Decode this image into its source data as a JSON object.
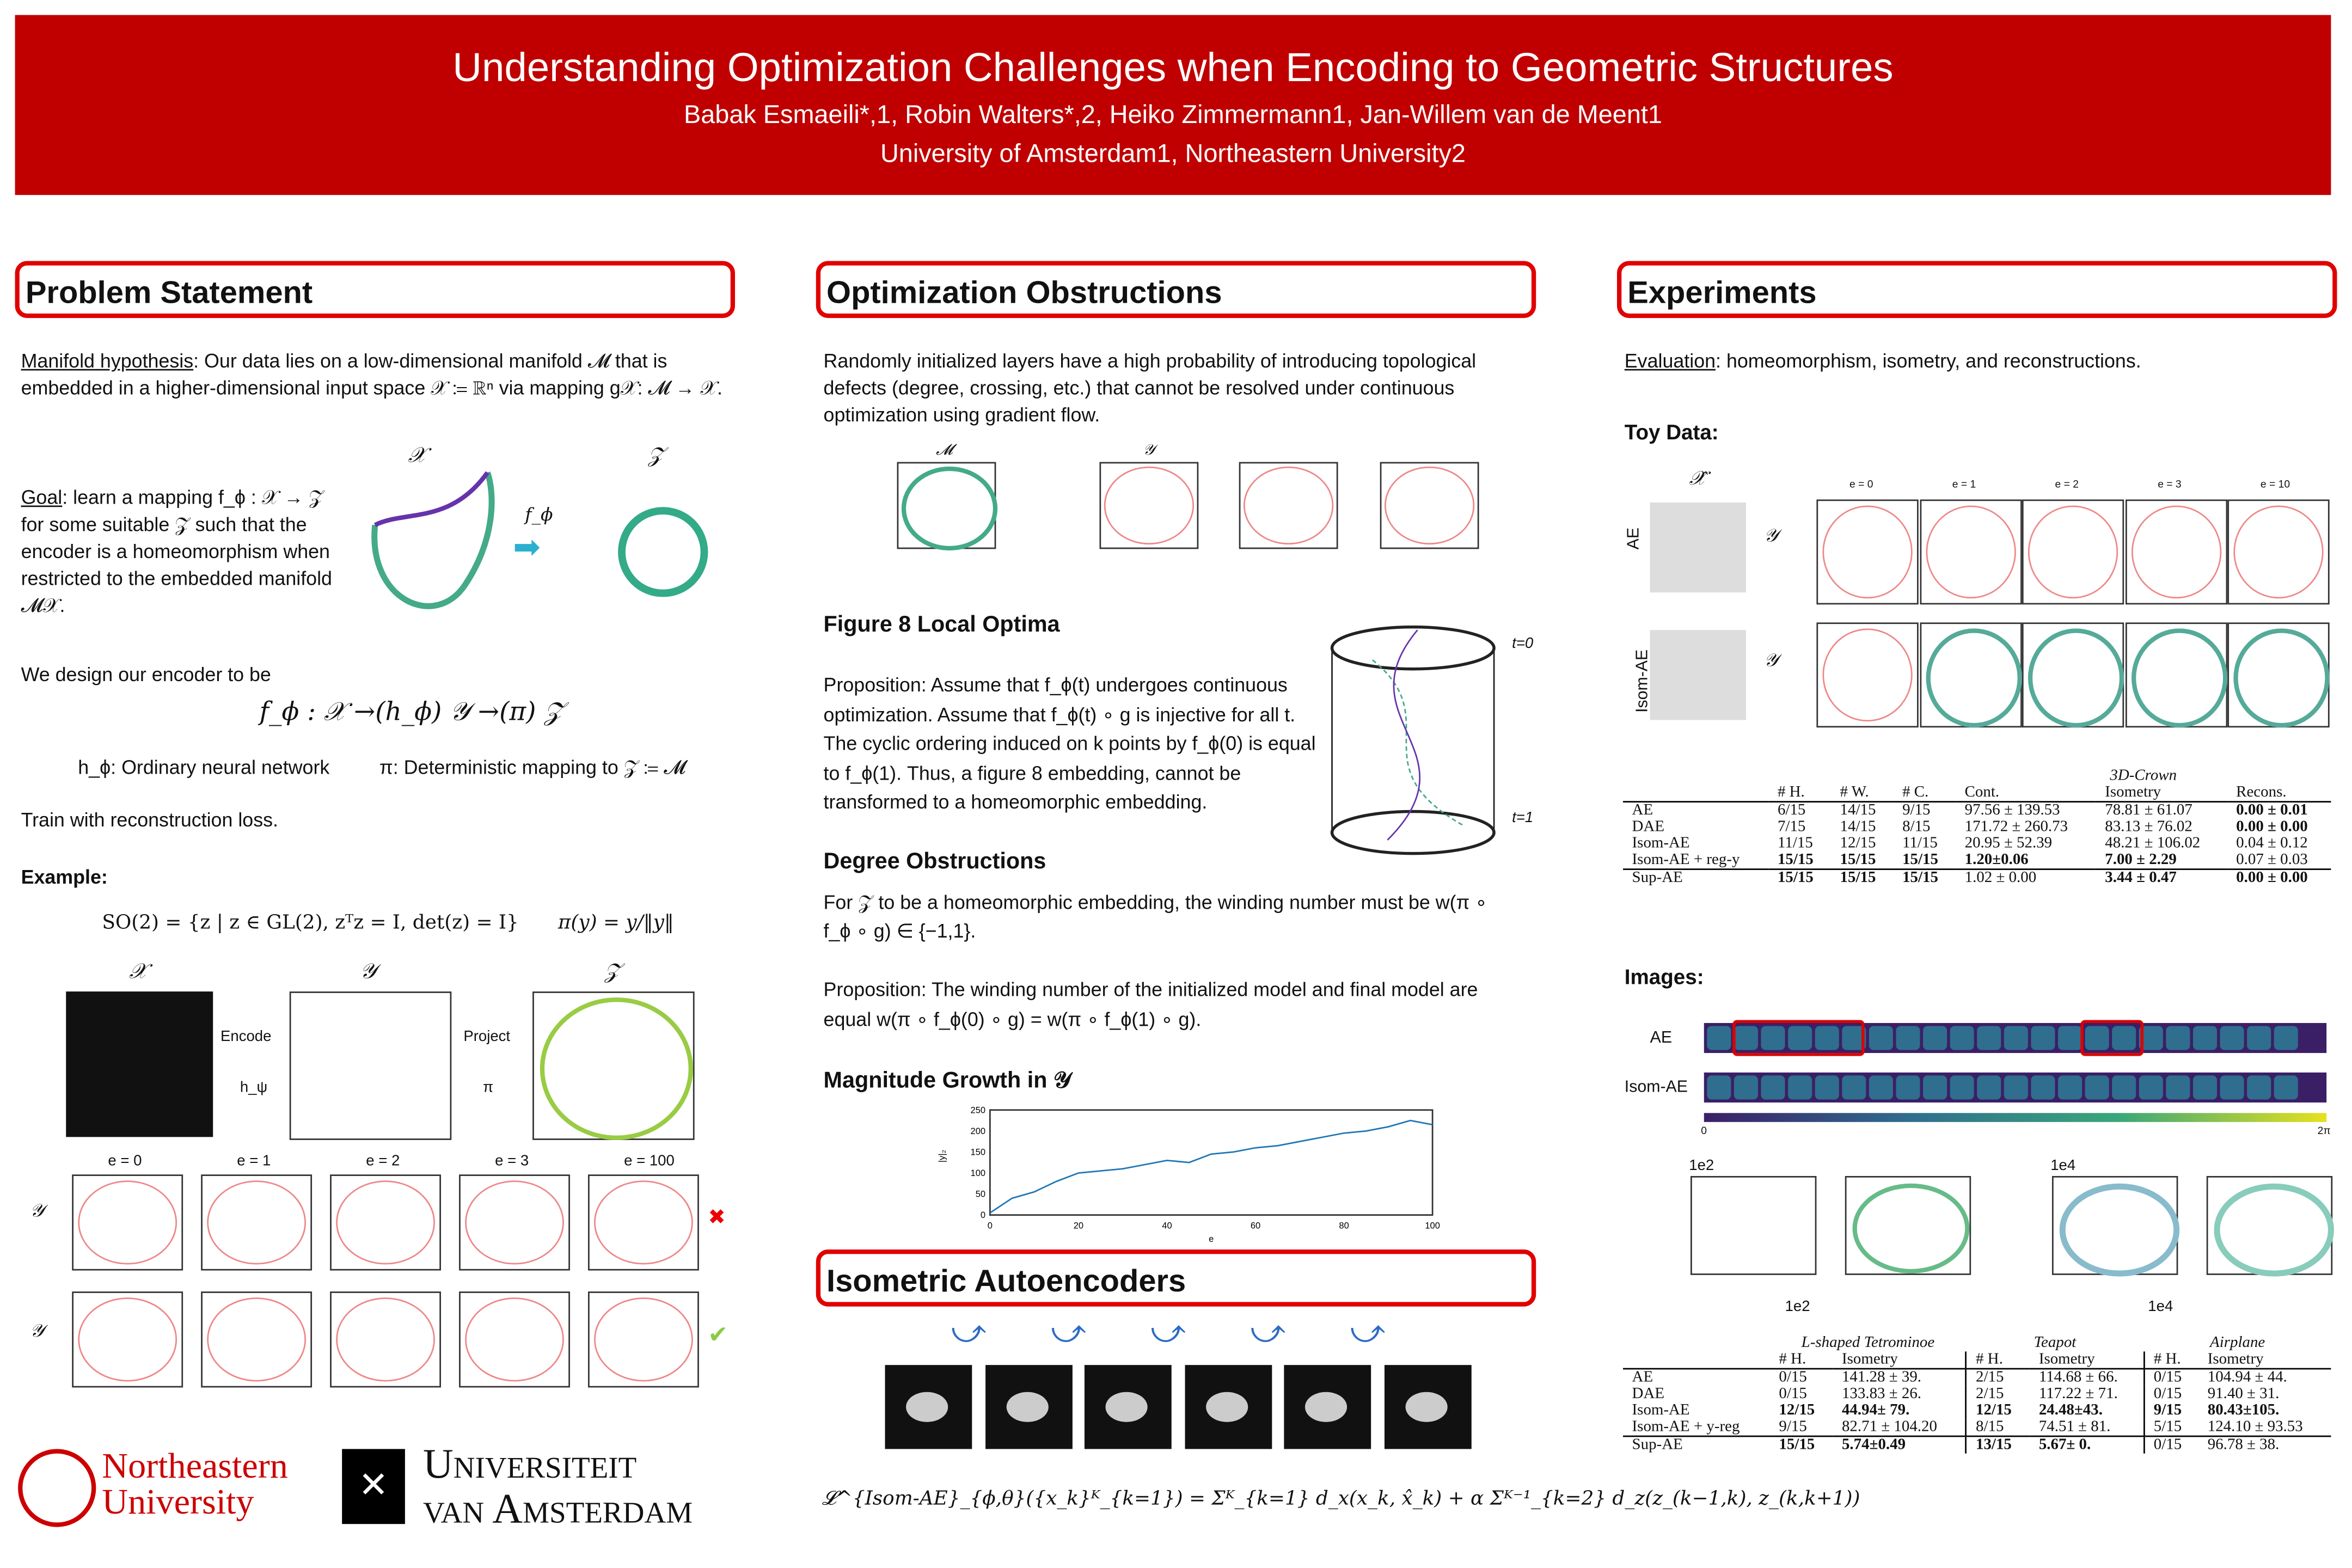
{
  "header": {
    "title": "Understanding Optimization Challenges when Encoding to Geometric Structures",
    "authors": "Babak Esmaeili*,1, Robin Walters*,2, Heiko Zimmermann1, Jan-Willem van de Meent1",
    "affiliations": "University of Amsterdam1, Northeastern University2"
  },
  "problem": {
    "title": "Problem Statement",
    "manifold_label": "Manifold hypothesis",
    "manifold_text": ": Our data lies on a low-dimensional manifold 𝓜 that is embedded in a higher-dimensional input space 𝒳 ≔ ℝⁿ via mapping g𝒳: 𝓜 → 𝒳.",
    "goal_label": "Goal",
    "goal_text": ": learn a mapping f_ϕ : 𝒳 → 𝒵 for some suitable 𝒵 such that the encoder is a homeomorphism when restricted to the embedded manifold 𝓜𝒳.",
    "fig_x": "𝒳",
    "fig_z": "𝒵",
    "fig_f": "f_ϕ",
    "design": "We design our encoder to be",
    "design_eq": "f_ϕ : 𝒳 →(h_ϕ) 𝒴 →(π) 𝒵",
    "h_text": "h_ϕ: Ordinary neural network",
    "pi_text": "π: Deterministic mapping to 𝒵 ≔ 𝓜",
    "train": "Train with reconstruction loss.",
    "example": "Example:",
    "so2": "SO(2) = {z | z ∈ GL(2), zᵀz = I, det(z) = I}",
    "pi_eq": "π(y) = y/‖y‖",
    "ex_x": "𝒳",
    "ex_y": "𝒴",
    "ex_z": "𝒵",
    "encode": "Encode",
    "h_psi": "h_ψ",
    "project": "Project",
    "pi": "π",
    "epochs": [
      "e = 0",
      "e = 1",
      "e = 2",
      "e = 3",
      "e = 100"
    ],
    "row_label": "𝒴",
    "fail": "✖",
    "ok": "✔"
  },
  "logos": {
    "northeastern": "Northeastern University",
    "uva1": "Universiteit",
    "uva2": "van Amsterdam"
  },
  "obstructions": {
    "title": "Optimization Obstructions",
    "intro": "Randomly initialized layers have a high probability of introducing topological defects (degree, crossing, etc.) that cannot be resolved under continuous optimization using gradient flow.",
    "plot_m": "𝓜",
    "plot_y": "𝒴",
    "fig8_title": "Figure 8 Local Optima",
    "fig8_text": "Proposition: Assume that f_ϕ(t) undergoes continuous optimization. Assume that f_ϕ(t) ∘ g is injective for all t. The cyclic ordering induced on k points by f_ϕ(0) is equal to f_ϕ(1). Thus, a figure 8 embedding, cannot be transformed to a homeomorphic embedding.",
    "t0": "t=0",
    "t1": "t=1",
    "deg_title": "Degree Obstructions",
    "deg_text": "For 𝒵 to be a homeomorphic embedding, the winding number must be w(π ∘ f_ϕ ∘ g) ∈ {−1,1}.",
    "deg_prop": "Proposition: The winding number of the initialized model and final model are equal w(π ∘ f_ϕ(0) ∘ g) = w(π ∘ f_ϕ(1) ∘ g).",
    "mag_title": "Magnitude Growth in 𝒴",
    "mag_xlabel": "e",
    "mag_ylabel": "|y|₂"
  },
  "chart_data": {
    "type": "line",
    "title": "Magnitude Growth in 𝒴",
    "xlabel": "e",
    "ylabel": "|y|₂",
    "xlim": [
      0,
      100
    ],
    "ylim": [
      0,
      250
    ],
    "xticks": [
      0,
      20,
      40,
      60,
      80,
      100
    ],
    "yticks": [
      0,
      50,
      100,
      150,
      200,
      250
    ],
    "x": [
      0,
      5,
      10,
      15,
      20,
      25,
      30,
      35,
      40,
      45,
      50,
      55,
      60,
      65,
      70,
      75,
      80,
      85,
      90,
      95,
      100
    ],
    "y": [
      5,
      40,
      55,
      80,
      100,
      105,
      110,
      120,
      130,
      125,
      145,
      150,
      160,
      165,
      175,
      185,
      195,
      200,
      210,
      225,
      215
    ]
  },
  "isometric": {
    "title": "Isometric Autoencoders",
    "loss": "𝓛^{Isom-AE}_{ϕ,θ}({x_k}ᴷ_{k=1}) = Σᴷ_{k=1} d_x(x_k, x̂_k) + α Σᴷ⁻¹_{k=2} d_z(z_(k−1,k), z_(k,k+1))"
  },
  "experiments": {
    "title": "Experiments",
    "eval_label": "Evaluation",
    "eval_text": ": homeomorphism, isometry, and reconstructions.",
    "toy": "Toy Data:",
    "xhat": "𝒳̂",
    "y": "𝒴",
    "rows": [
      "AE",
      "Isom-AE"
    ],
    "epochs": [
      "e = 0",
      "e = 1",
      "e = 2",
      "e = 3",
      "e = 10"
    ],
    "table1": {
      "group": "3D-Crown",
      "headers": [
        "# H.",
        "# W.",
        "# C.",
        "Cont.",
        "Isometry",
        "Recons."
      ],
      "rows": [
        [
          "AE",
          "6/15",
          "14/15",
          "9/15",
          "97.56 ± 139.53",
          "78.81 ± 61.07",
          "0.00 ± 0.01"
        ],
        [
          "DAE",
          "7/15",
          "14/15",
          "8/15",
          "171.72 ± 260.73",
          "83.13 ± 76.02",
          "0.00 ± 0.00"
        ],
        [
          "Isom-AE",
          "11/15",
          "12/15",
          "11/15",
          "20.95 ± 52.39",
          "48.21 ± 106.02",
          "0.04 ± 0.12"
        ],
        [
          "Isom-AE + reg-y",
          "15/15",
          "15/15",
          "15/15",
          "1.20±0.06",
          "7.00 ± 2.29",
          "0.07 ± 0.03"
        ]
      ],
      "sup": [
        "Sup-AE",
        "15/15",
        "15/15",
        "15/15",
        "1.02 ± 0.00",
        "3.44 ± 0.47",
        "0.00 ± 0.00"
      ]
    },
    "images": "Images:",
    "img_rows": [
      "AE",
      "Isom-AE"
    ],
    "cbar": [
      "0",
      "2π"
    ],
    "scale": [
      "1e2",
      "1e2",
      "1e4",
      "1e4"
    ],
    "table2": {
      "groups": [
        "L-shaped Tetrominoe",
        "Teapot",
        "Airplane"
      ],
      "headers": [
        "# H.",
        "Isometry"
      ],
      "rows": [
        [
          "AE",
          "0/15",
          "141.28 ± 39.",
          "2/15",
          "114.68 ± 66.",
          "0/15",
          "104.94 ± 44."
        ],
        [
          "DAE",
          "0/15",
          "133.83 ± 26.",
          "2/15",
          "117.22 ± 71.",
          "0/15",
          "91.40 ± 31."
        ],
        [
          "Isom-AE",
          "12/15",
          "44.94± 79.",
          "12/15",
          "24.48±43.",
          "9/15",
          "80.43±105."
        ],
        [
          "Isom-AE + y-reg",
          "9/15",
          "82.71 ± 104.20",
          "8/15",
          "74.51 ± 81.",
          "5/15",
          "124.10 ± 93.53"
        ]
      ],
      "sup": [
        "Sup-AE",
        "15/15",
        "5.74±0.49",
        "13/15",
        "5.67± 0.",
        "0/15",
        "96.78 ± 38."
      ]
    }
  },
  "colors": {
    "brand": "#c00000",
    "accent": "#e00000"
  }
}
